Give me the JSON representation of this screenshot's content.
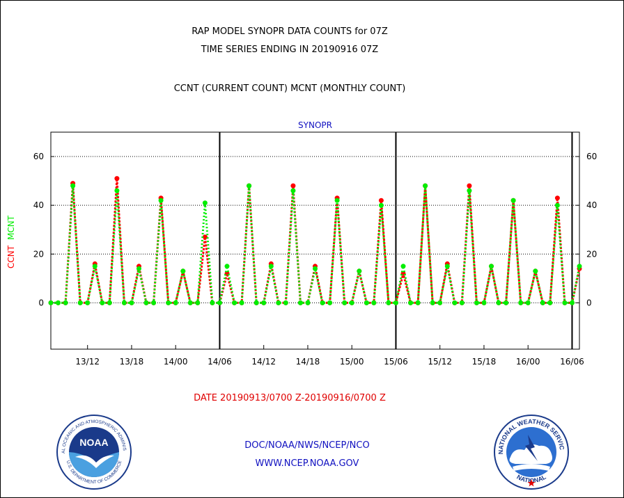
{
  "header": {
    "line1": "RAP MODEL SYNOPR DATA COUNTS for 07Z",
    "line2": "TIME SERIES ENDING IN 20190916 07Z",
    "line3": "CCNT (CURRENT COUNT) MCNT (MONTHLY COUNT)"
  },
  "footer": {
    "date_range": "DATE 20190913/0700 Z-20190916/0700 Z",
    "org": "DOC/NOAA/NWS/NCEP/NCO",
    "url": "WWW.NCEP.NOAA.GOV"
  },
  "logos": {
    "noaa_text": "NOAA",
    "noaa_ring_top": "NATIONAL OCEANIC AND ATMOSPHERIC ADMINISTRATION",
    "noaa_ring_bottom": "U.S. DEPARTMENT OF COMMERCE",
    "nws_ring_top": "NATIONAL WEATHER SERVICE",
    "nws_ring_bottom": "NATIONAL"
  },
  "colors": {
    "ccnt": "#ff0000",
    "mcnt": "#00ee00",
    "title_blue": "#1010c0"
  },
  "chart_data": {
    "type": "line",
    "title": "SYNOPR",
    "ylabel_series": [
      "CCNT",
      "MCNT"
    ],
    "ylim": [
      -19,
      70
    ],
    "yticks": [
      0,
      20,
      40,
      60
    ],
    "grid": "horizontal dotted at y ticks",
    "day_dividers": [
      "14/06",
      "15/06",
      "16/06"
    ],
    "xtick_labels": [
      "13/12",
      "13/18",
      "14/00",
      "14/06",
      "14/12",
      "14/18",
      "15/00",
      "15/06",
      "15/12",
      "15/18",
      "16/00",
      "16/06"
    ],
    "x": [
      "13/07",
      "13/08",
      "13/09",
      "13/10",
      "13/11",
      "13/12",
      "13/13",
      "13/14",
      "13/15",
      "13/16",
      "13/17",
      "13/18",
      "13/19",
      "13/20",
      "13/21",
      "13/22",
      "13/23",
      "14/00",
      "14/01",
      "14/02",
      "14/03",
      "14/04",
      "14/05",
      "14/06",
      "14/07",
      "14/08",
      "14/09",
      "14/10",
      "14/11",
      "14/12",
      "14/13",
      "14/14",
      "14/15",
      "14/16",
      "14/17",
      "14/18",
      "14/19",
      "14/20",
      "14/21",
      "14/22",
      "14/23",
      "15/00",
      "15/01",
      "15/02",
      "15/03",
      "15/04",
      "15/05",
      "15/06",
      "15/07",
      "15/08",
      "15/09",
      "15/10",
      "15/11",
      "15/12",
      "15/13",
      "15/14",
      "15/15",
      "15/16",
      "15/17",
      "15/18",
      "15/19",
      "15/20",
      "15/21",
      "15/22",
      "15/23",
      "16/00",
      "16/01",
      "16/02",
      "16/03",
      "16/04",
      "16/05",
      "16/06",
      "16/07"
    ],
    "series": [
      {
        "name": "CCNT",
        "color": "#ff0000",
        "values": [
          0,
          0,
          0,
          49,
          0,
          0,
          16,
          0,
          0,
          51,
          0,
          0,
          15,
          0,
          0,
          43,
          0,
          0,
          13,
          0,
          0,
          27,
          0,
          0,
          12,
          0,
          0,
          48,
          0,
          0,
          16,
          0,
          0,
          48,
          0,
          0,
          15,
          0,
          0,
          43,
          0,
          0,
          13,
          0,
          0,
          42,
          0,
          0,
          12,
          0,
          0,
          48,
          0,
          0,
          16,
          0,
          0,
          48,
          0,
          0,
          15,
          0,
          0,
          42,
          0,
          0,
          13,
          0,
          0,
          43,
          0,
          0,
          14
        ]
      },
      {
        "name": "MCNT",
        "color": "#00ee00",
        "values": [
          0,
          0,
          0,
          48,
          0,
          0,
          15,
          0,
          0,
          46,
          0,
          0,
          14,
          0,
          0,
          42,
          0,
          0,
          13,
          0,
          0,
          41,
          0,
          0,
          15,
          0,
          0,
          48,
          0,
          0,
          15,
          0,
          0,
          46,
          0,
          0,
          14,
          0,
          0,
          42,
          0,
          0,
          13,
          0,
          0,
          40,
          0,
          0,
          15,
          0,
          0,
          48,
          0,
          0,
          15,
          0,
          0,
          46,
          0,
          0,
          15,
          0,
          0,
          42,
          0,
          0,
          13,
          0,
          0,
          40,
          0,
          0,
          15
        ]
      }
    ]
  }
}
